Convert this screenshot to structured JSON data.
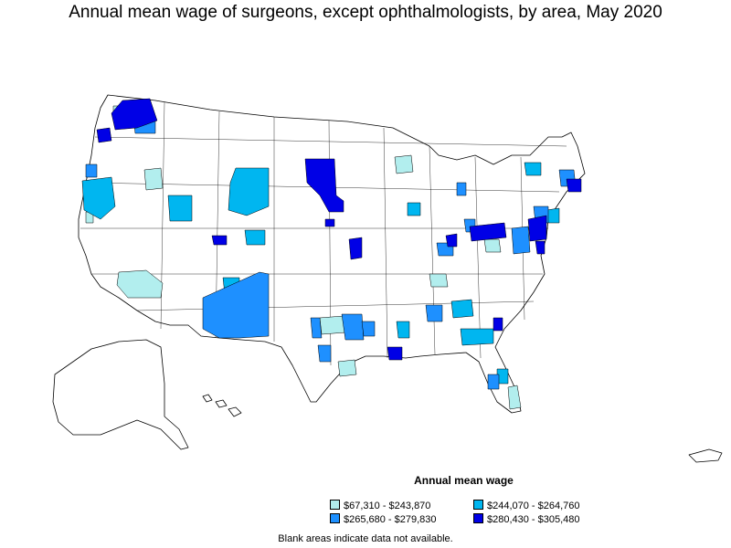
{
  "title": "Annual mean wage of surgeons, except ophthalmologists, by area, May 2020",
  "legend": {
    "title": "Annual mean wage",
    "items": [
      {
        "label": "$67,310 - $243,870",
        "color": "#b2eeee"
      },
      {
        "label": "$244,070 - $264,760",
        "color": "#00b6f0"
      },
      {
        "label": "$265,680 - $279,830",
        "color": "#1e90ff"
      },
      {
        "label": "$280,430 - $305,480",
        "color": "#0000e6"
      }
    ]
  },
  "footnote": "Blank areas indicate data not available.",
  "colors": {
    "no_data": "#ffffff",
    "outline": "#000000"
  }
}
